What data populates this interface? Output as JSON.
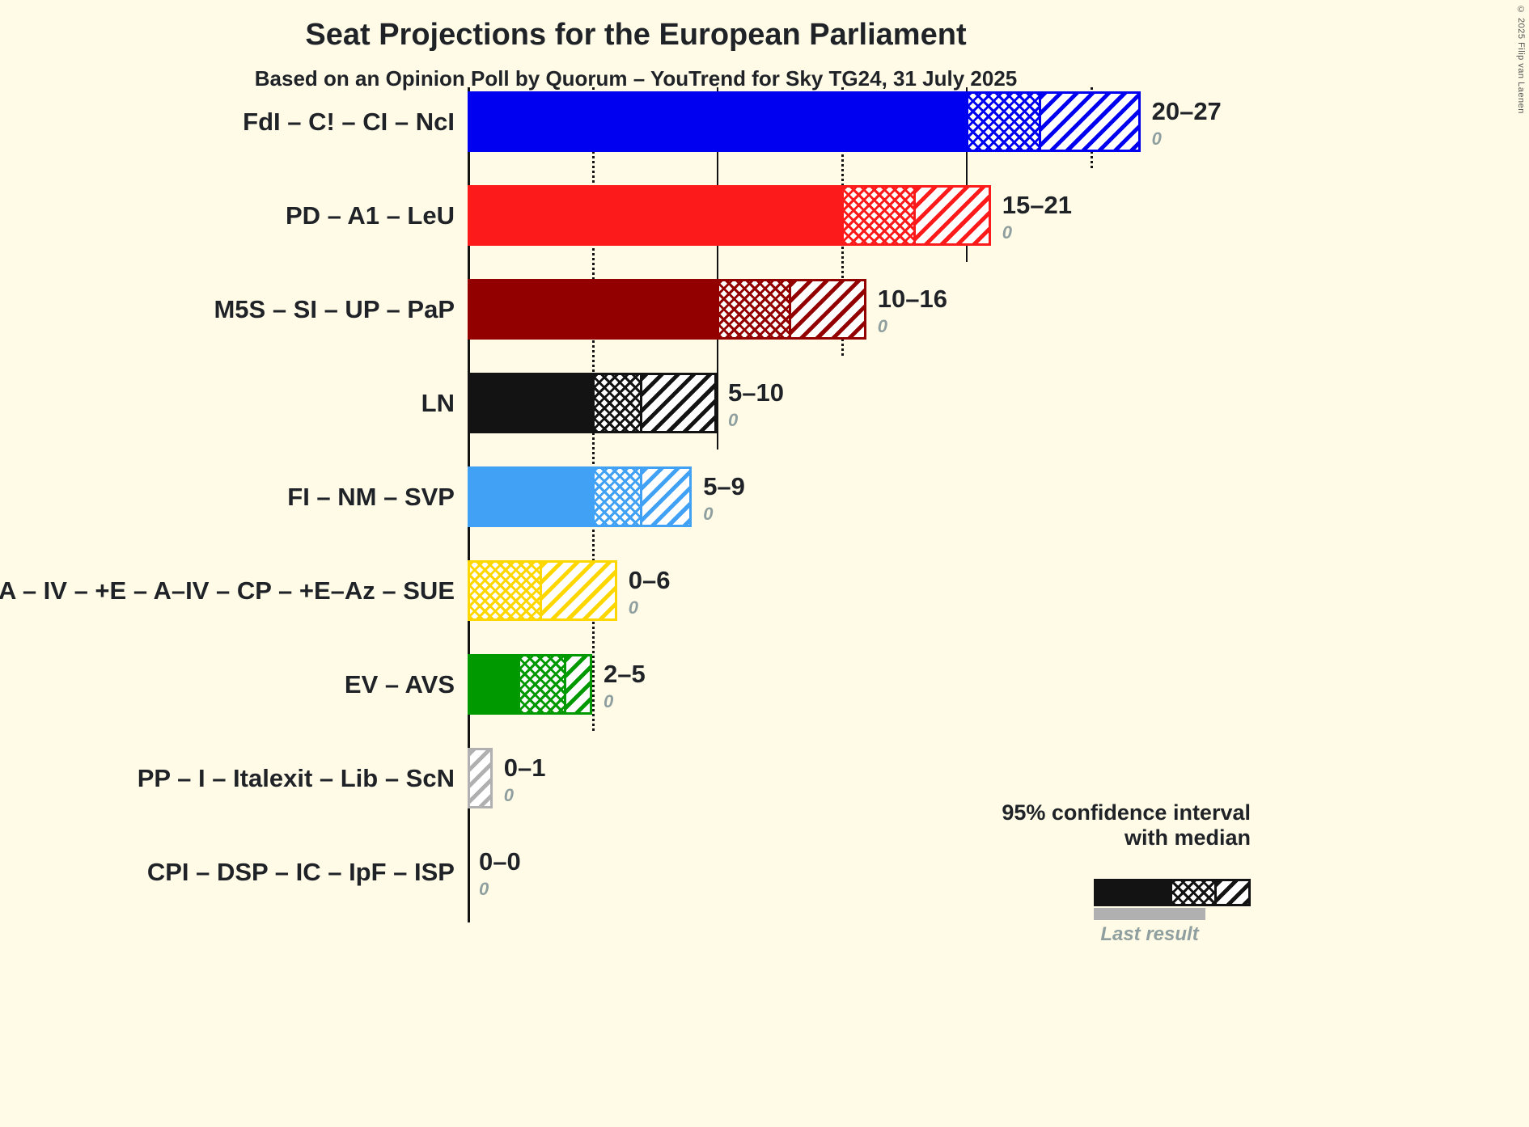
{
  "title": "Seat Projections for the European Parliament",
  "subtitle": "Based on an Opinion Poll by Quorum – YouTrend for Sky TG24, 31 July 2025",
  "copyright": "© 2025 Filip van Laenen",
  "legend": {
    "ci_label_line1": "95% confidence interval",
    "ci_label_line2": "with median",
    "last_result_label": "Last result",
    "sample_color": "#131313",
    "last_result_color": "#b0b0b0"
  },
  "chart_data": {
    "type": "bar",
    "orientation": "horizontal",
    "title": "Seat Projections for the European Parliament",
    "subtitle": "Based on an Opinion Poll by Quorum – YouTrend for Sky TG24, 31 July 2025",
    "x_axis": {
      "min": 0,
      "max": 27.5,
      "ticks": [
        {
          "value": 5,
          "style": "dotted"
        },
        {
          "value": 10,
          "style": "solid"
        },
        {
          "value": 15,
          "style": "dotted"
        },
        {
          "value": 20,
          "style": "solid"
        },
        {
          "value": 25,
          "style": "dotted"
        }
      ]
    },
    "parties": [
      {
        "label": "FdI – C! – CI – NcI",
        "color": "#0000f0",
        "ci_low": 20,
        "median": 23,
        "ci_high": 27,
        "range_label": "20–27",
        "last_result": "0",
        "last_result_value": 0
      },
      {
        "label": "PD – A1 – LeU",
        "color": "#fc1a1a",
        "ci_low": 15,
        "median": 18,
        "ci_high": 21,
        "range_label": "15–21",
        "last_result": "0",
        "last_result_value": 0
      },
      {
        "label": "M5S – SI – UP – PaP",
        "color": "#920000",
        "ci_low": 10,
        "median": 13,
        "ci_high": 16,
        "range_label": "10–16",
        "last_result": "0",
        "last_result_value": 0
      },
      {
        "label": "LN",
        "color": "#131313",
        "ci_low": 5,
        "median": 7,
        "ci_high": 10,
        "range_label": "5–10",
        "last_result": "0",
        "last_result_value": 0
      },
      {
        "label": "FI – NM – SVP",
        "color": "#41a1f5",
        "ci_low": 5,
        "median": 7,
        "ci_high": 9,
        "range_label": "5–9",
        "last_result": "0",
        "last_result_value": 0
      },
      {
        "label": "A – IV – +E – A–IV – CP – +E–Az – SUE",
        "color": "#ffd700",
        "ci_low": 0,
        "median": 3,
        "ci_high": 6,
        "range_label": "0–6",
        "last_result": "0",
        "last_result_value": 0
      },
      {
        "label": "EV – AVS",
        "color": "#009a00",
        "ci_low": 2,
        "median": 4,
        "ci_high": 5,
        "range_label": "2–5",
        "last_result": "0",
        "last_result_value": 0
      },
      {
        "label": "PP – I – Italexit – Lib – ScN",
        "color": "#b0b0b0",
        "ci_low": 0,
        "median": 0,
        "ci_high": 1,
        "range_label": "0–1",
        "last_result": "0",
        "last_result_value": 0
      },
      {
        "label": "CPI – DSP – IC – IpF – ISP",
        "color": "#131313",
        "ci_low": 0,
        "median": 0,
        "ci_high": 0,
        "range_label": "0–0",
        "last_result": "0",
        "last_result_value": 0
      }
    ]
  }
}
